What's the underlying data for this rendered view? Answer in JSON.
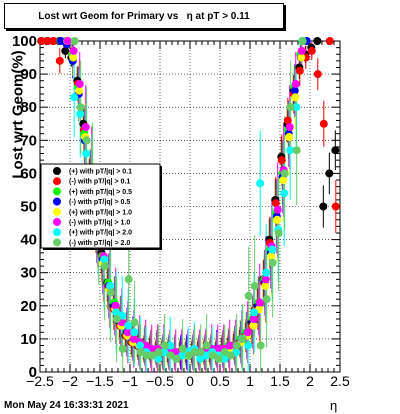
{
  "title": "Lost wrt Geom for Primary vs   η at pT > 0.11",
  "timestamp": "Mon May 24 16:33:31 2021",
  "chart_data": {
    "type": "scatter",
    "title": "Lost wrt Geom for Primary vs   η at pT > 0.11",
    "xlabel": "η",
    "ylabel": "Lost wrt Geom(%)",
    "xlim": [
      -2.5,
      2.5
    ],
    "ylim": [
      0,
      100
    ],
    "x_ticks": [
      "−2.5",
      "−2",
      "−1.5",
      "−1",
      "−0.5",
      "0",
      "0.5",
      "1",
      "1.5",
      "2",
      "2.5"
    ],
    "y_ticks": [
      "0",
      "10",
      "20",
      "30",
      "40",
      "50",
      "60",
      "70",
      "80",
      "90",
      "100"
    ],
    "grid": true,
    "legend_position": "left-middle",
    "series": [
      {
        "name": "(+) with pT/|q| > 0.1",
        "color": "#000000",
        "marker": "circle",
        "x": [
          -2.45,
          -2.35,
          -2.25,
          -2.15,
          -2.05,
          -1.95,
          -1.85,
          -1.75,
          -1.65,
          -1.55,
          -1.45,
          -1.35,
          -1.25,
          -1.15,
          -1.05,
          -0.95,
          -0.85,
          -0.75,
          -0.65,
          -0.55,
          -0.45,
          -0.35,
          -0.25,
          -0.15,
          -0.05,
          0.05,
          0.15,
          0.25,
          0.35,
          0.45,
          0.55,
          0.65,
          0.75,
          0.85,
          0.95,
          1.05,
          1.15,
          1.25,
          1.35,
          1.45,
          1.55,
          1.65,
          1.75,
          1.85,
          1.95,
          2.05,
          2.15,
          2.25,
          2.35,
          2.45
        ],
        "y": [
          100,
          100,
          100,
          100,
          97,
          95,
          88,
          75,
          58,
          45,
          36,
          27,
          20,
          15,
          11,
          9,
          8,
          7,
          7,
          6,
          6,
          6,
          5,
          6,
          6,
          6,
          6,
          6,
          6,
          6,
          7,
          7,
          8,
          9,
          11,
          15,
          20,
          28,
          40,
          52,
          65,
          75,
          85,
          92,
          96,
          98,
          100,
          50,
          60,
          67
        ]
      },
      {
        "name": "(-) with pT/|q| > 0.1",
        "color": "#ff0000",
        "marker": "circle",
        "x": [
          -2.45,
          -2.35,
          -2.25,
          -2.15,
          -2.05,
          -1.95,
          -1.85,
          -1.75,
          -1.65,
          -1.55,
          -1.45,
          -1.35,
          -1.25,
          -1.15,
          -1.05,
          -0.95,
          -0.85,
          -0.75,
          -0.65,
          -0.55,
          -0.45,
          -0.35,
          -0.25,
          -0.15,
          -0.05,
          0.05,
          0.15,
          0.25,
          0.35,
          0.45,
          0.55,
          0.65,
          0.75,
          0.85,
          0.95,
          1.05,
          1.15,
          1.25,
          1.35,
          1.45,
          1.55,
          1.65,
          1.75,
          1.85,
          1.95,
          2.05,
          2.15,
          2.25,
          2.35,
          2.45
        ],
        "y": [
          100,
          100,
          100,
          94,
          100,
          96,
          87,
          73,
          57,
          44,
          35,
          26,
          19,
          14,
          11,
          9,
          8,
          7,
          7,
          6,
          6,
          6,
          5,
          6,
          6,
          6,
          6,
          6,
          6,
          6,
          7,
          7,
          8,
          9,
          11,
          14,
          19,
          27,
          39,
          51,
          64,
          76,
          84,
          91,
          95,
          97,
          90,
          75,
          100,
          50
        ]
      },
      {
        "name": "(+) with pT/|q| > 0.5",
        "color": "#00ff00",
        "marker": "circle",
        "x": [
          -2.15,
          -2.05,
          -1.95,
          -1.85,
          -1.75,
          -1.65,
          -1.55,
          -1.45,
          -1.35,
          -1.25,
          -1.15,
          -1.05,
          -0.95,
          -0.85,
          -0.75,
          -0.65,
          -0.55,
          -0.45,
          -0.35,
          -0.25,
          -0.15,
          -0.05,
          0.05,
          0.15,
          0.25,
          0.35,
          0.45,
          0.55,
          0.65,
          0.75,
          0.85,
          0.95,
          1.05,
          1.15,
          1.25,
          1.35,
          1.45,
          1.55,
          1.65,
          1.75,
          1.85,
          1.95
        ],
        "y": [
          100,
          100,
          96,
          86,
          72,
          58,
          46,
          35,
          27,
          21,
          16,
          12,
          10,
          9,
          8,
          7,
          7,
          6,
          6,
          6,
          6,
          6,
          6,
          6,
          6,
          6,
          7,
          7,
          8,
          8,
          10,
          12,
          16,
          21,
          28,
          37,
          48,
          60,
          73,
          86,
          96,
          100
        ]
      },
      {
        "name": "(-) with pT/|q| > 0.5",
        "color": "#0000ff",
        "marker": "circle",
        "x": [
          -2.15,
          -2.05,
          -1.95,
          -1.85,
          -1.75,
          -1.65,
          -1.55,
          -1.45,
          -1.35,
          -1.25,
          -1.15,
          -1.05,
          -0.95,
          -0.85,
          -0.75,
          -0.65,
          -0.55,
          -0.45,
          -0.35,
          -0.25,
          -0.15,
          -0.05,
          0.05,
          0.15,
          0.25,
          0.35,
          0.45,
          0.55,
          0.65,
          0.75,
          0.85,
          0.95,
          1.05,
          1.15,
          1.25,
          1.35,
          1.45,
          1.55,
          1.65,
          1.75,
          1.85,
          1.95
        ],
        "y": [
          100,
          99,
          94,
          84,
          70,
          56,
          44,
          34,
          26,
          20,
          15,
          12,
          10,
          8,
          8,
          7,
          7,
          6,
          6,
          6,
          6,
          6,
          6,
          6,
          6,
          6,
          7,
          7,
          7,
          8,
          9,
          11,
          15,
          20,
          27,
          36,
          47,
          59,
          72,
          85,
          95,
          100
        ]
      },
      {
        "name": "(+) with pT/|q| > 1.0",
        "color": "#ffff00",
        "marker": "circle",
        "x": [
          -2.05,
          -1.95,
          -1.85,
          -1.75,
          -1.65,
          -1.55,
          -1.45,
          -1.35,
          -1.25,
          -1.15,
          -1.05,
          -0.95,
          -0.85,
          -0.75,
          -0.65,
          -0.55,
          -0.45,
          -0.35,
          -0.25,
          -0.15,
          -0.05,
          0.05,
          0.15,
          0.25,
          0.35,
          0.45,
          0.55,
          0.65,
          0.75,
          0.85,
          0.95,
          1.05,
          1.15,
          1.25,
          1.35,
          1.45,
          1.55,
          1.65,
          1.75,
          1.85
        ],
        "y": [
          100,
          95,
          85,
          71,
          57,
          44,
          33,
          25,
          19,
          14,
          11,
          9,
          8,
          8,
          7,
          7,
          6,
          6,
          6,
          5,
          5,
          6,
          6,
          6,
          6,
          6,
          7,
          7,
          8,
          9,
          11,
          14,
          19,
          26,
          35,
          46,
          58,
          71,
          83,
          95
        ]
      },
      {
        "name": "(-) with pT/|q| > 1.0",
        "color": "#ff00ff",
        "marker": "circle",
        "x": [
          -2.05,
          -1.95,
          -1.85,
          -1.75,
          -1.65,
          -1.55,
          -1.45,
          -1.35,
          -1.25,
          -1.15,
          -1.05,
          -0.95,
          -0.85,
          -0.75,
          -0.65,
          -0.55,
          -0.45,
          -0.35,
          -0.25,
          -0.15,
          -0.05,
          0.05,
          0.15,
          0.25,
          0.35,
          0.45,
          0.55,
          0.65,
          0.75,
          0.85,
          0.95,
          1.05,
          1.15,
          1.25,
          1.35,
          1.45,
          1.55,
          1.65,
          1.75,
          1.85
        ],
        "y": [
          100,
          97,
          87,
          74,
          60,
          46,
          35,
          26,
          20,
          15,
          12,
          10,
          9,
          8,
          7,
          7,
          7,
          6,
          6,
          6,
          6,
          6,
          6,
          6,
          7,
          7,
          7,
          8,
          8,
          10,
          12,
          16,
          21,
          28,
          38,
          49,
          61,
          74,
          87,
          97
        ]
      },
      {
        "name": "(+) with pT/|q| > 2.0",
        "color": "#00ffff",
        "marker": "circle",
        "x": [
          -1.95,
          -1.85,
          -1.75,
          -1.65,
          -1.55,
          -1.45,
          -1.35,
          -1.25,
          -1.15,
          -1.05,
          -0.95,
          -0.85,
          -0.75,
          -0.65,
          -0.55,
          -0.45,
          -0.35,
          -0.25,
          -0.15,
          -0.05,
          0.05,
          0.15,
          0.25,
          0.35,
          0.45,
          0.55,
          0.65,
          0.75,
          0.85,
          0.95,
          1.05,
          1.15,
          1.25,
          1.35,
          1.45,
          1.55,
          1.65,
          1.75,
          1.85
        ],
        "y": [
          83,
          78,
          66,
          56,
          45,
          34,
          26,
          18,
          17,
          14,
          12,
          8,
          6,
          5,
          4,
          6,
          8,
          4,
          5,
          6,
          7,
          4,
          5,
          6,
          5,
          4,
          5,
          6,
          10,
          8,
          18,
          57,
          30,
          37,
          43,
          54,
          67,
          80,
          100
        ]
      },
      {
        "name": "(-) with pT/|q| > 2.0",
        "color": "#66cc66",
        "marker": "circle",
        "x": [
          -1.95,
          -1.85,
          -1.75,
          -1.65,
          -1.55,
          -1.45,
          -1.35,
          -1.25,
          -1.15,
          -1.05,
          -0.95,
          -0.85,
          -0.75,
          -0.65,
          -0.55,
          -0.45,
          -0.35,
          -0.25,
          -0.15,
          -0.05,
          0.05,
          0.15,
          0.25,
          0.35,
          0.45,
          0.55,
          0.65,
          0.75,
          0.85,
          0.95,
          1.05,
          1.15,
          1.25,
          1.35,
          1.45,
          1.55,
          1.65,
          1.75,
          1.85
        ],
        "y": [
          100,
          80,
          70,
          58,
          44,
          32,
          24,
          16,
          7,
          28,
          15,
          6,
          5,
          5,
          6,
          8,
          5,
          4,
          7,
          5,
          6,
          6,
          8,
          5,
          4,
          6,
          5,
          8,
          10,
          23,
          26,
          8,
          22,
          33,
          42,
          60,
          80,
          67,
          100
        ]
      }
    ]
  }
}
